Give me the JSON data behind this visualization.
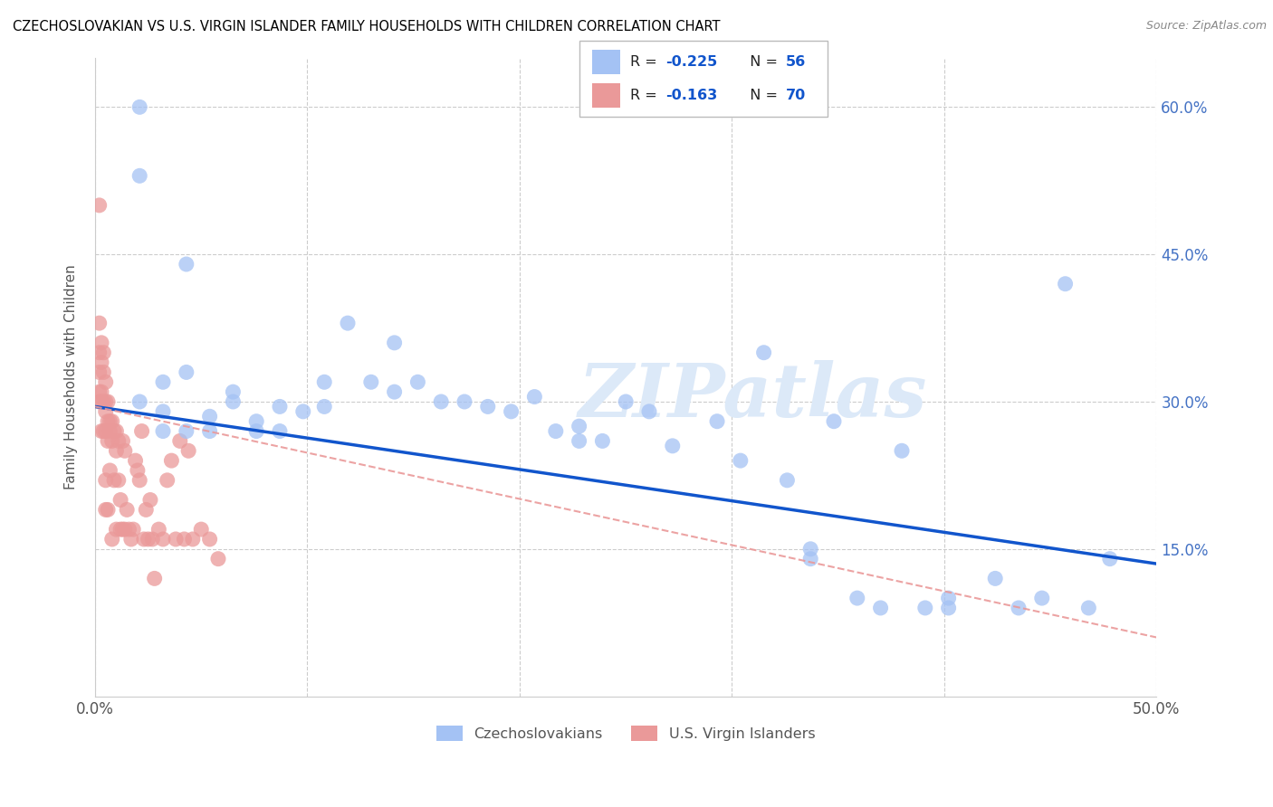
{
  "title": "CZECHOSLOVAKIAN VS U.S. VIRGIN ISLANDER FAMILY HOUSEHOLDS WITH CHILDREN CORRELATION CHART",
  "source": "Source: ZipAtlas.com",
  "ylabel": "Family Households with Children",
  "xlim": [
    0.0,
    0.5
  ],
  "ylim": [
    0.0,
    0.65
  ],
  "xticks": [
    0.0,
    0.1,
    0.2,
    0.3,
    0.4,
    0.5
  ],
  "xtick_labels": [
    "0.0%",
    "",
    "",
    "",
    "",
    "50.0%"
  ],
  "yticks_right": [
    0.15,
    0.3,
    0.45,
    0.6
  ],
  "ytick_labels_right": [
    "15.0%",
    "30.0%",
    "45.0%",
    "60.0%"
  ],
  "legend_r1": "-0.225",
  "legend_n1": "56",
  "legend_r2": "-0.163",
  "legend_n2": "70",
  "blue_color": "#a4c2f4",
  "pink_color": "#ea9999",
  "blue_line_color": "#1155cc",
  "pink_line_color": "#cc4125",
  "watermark": "ZIPatlas",
  "blue_scatter_x": [
    0.021,
    0.021,
    0.043,
    0.021,
    0.032,
    0.032,
    0.032,
    0.043,
    0.043,
    0.054,
    0.054,
    0.065,
    0.065,
    0.076,
    0.076,
    0.087,
    0.087,
    0.098,
    0.108,
    0.108,
    0.119,
    0.13,
    0.141,
    0.141,
    0.152,
    0.163,
    0.174,
    0.185,
    0.196,
    0.207,
    0.217,
    0.228,
    0.228,
    0.239,
    0.25,
    0.261,
    0.272,
    0.293,
    0.304,
    0.315,
    0.326,
    0.337,
    0.337,
    0.348,
    0.359,
    0.37,
    0.38,
    0.391,
    0.402,
    0.402,
    0.424,
    0.435,
    0.446,
    0.457,
    0.468,
    0.478
  ],
  "blue_scatter_y": [
    0.6,
    0.53,
    0.44,
    0.3,
    0.27,
    0.32,
    0.29,
    0.33,
    0.27,
    0.285,
    0.27,
    0.31,
    0.3,
    0.27,
    0.28,
    0.295,
    0.27,
    0.29,
    0.32,
    0.295,
    0.38,
    0.32,
    0.36,
    0.31,
    0.32,
    0.3,
    0.3,
    0.295,
    0.29,
    0.305,
    0.27,
    0.26,
    0.275,
    0.26,
    0.3,
    0.29,
    0.255,
    0.28,
    0.24,
    0.35,
    0.22,
    0.14,
    0.15,
    0.28,
    0.1,
    0.09,
    0.25,
    0.09,
    0.1,
    0.09,
    0.12,
    0.09,
    0.1,
    0.42,
    0.09,
    0.14
  ],
  "pink_scatter_x": [
    0.002,
    0.002,
    0.002,
    0.002,
    0.002,
    0.002,
    0.003,
    0.003,
    0.003,
    0.003,
    0.003,
    0.004,
    0.004,
    0.004,
    0.004,
    0.005,
    0.005,
    0.005,
    0.005,
    0.005,
    0.005,
    0.006,
    0.006,
    0.006,
    0.006,
    0.007,
    0.007,
    0.007,
    0.008,
    0.008,
    0.008,
    0.009,
    0.009,
    0.01,
    0.01,
    0.01,
    0.011,
    0.011,
    0.012,
    0.012,
    0.013,
    0.013,
    0.014,
    0.014,
    0.015,
    0.016,
    0.017,
    0.018,
    0.019,
    0.02,
    0.021,
    0.022,
    0.023,
    0.024,
    0.025,
    0.026,
    0.027,
    0.028,
    0.03,
    0.032,
    0.034,
    0.036,
    0.038,
    0.04,
    0.042,
    0.044,
    0.046,
    0.05,
    0.054,
    0.058
  ],
  "pink_scatter_y": [
    0.5,
    0.38,
    0.35,
    0.33,
    0.31,
    0.3,
    0.36,
    0.34,
    0.31,
    0.3,
    0.27,
    0.35,
    0.33,
    0.3,
    0.27,
    0.32,
    0.3,
    0.27,
    0.22,
    0.19,
    0.29,
    0.3,
    0.28,
    0.26,
    0.19,
    0.28,
    0.27,
    0.23,
    0.28,
    0.26,
    0.16,
    0.27,
    0.22,
    0.27,
    0.17,
    0.25,
    0.26,
    0.22,
    0.2,
    0.17,
    0.26,
    0.17,
    0.25,
    0.17,
    0.19,
    0.17,
    0.16,
    0.17,
    0.24,
    0.23,
    0.22,
    0.27,
    0.16,
    0.19,
    0.16,
    0.2,
    0.16,
    0.12,
    0.17,
    0.16,
    0.22,
    0.24,
    0.16,
    0.26,
    0.16,
    0.25,
    0.16,
    0.17,
    0.16,
    0.14
  ],
  "blue_line_x": [
    0.0,
    0.5
  ],
  "blue_line_y_start": 0.295,
  "blue_line_y_end": 0.135,
  "pink_line_x_start": 0.0,
  "pink_line_x_end": 0.5,
  "pink_line_y_start": 0.295,
  "pink_line_y_end": 0.06
}
